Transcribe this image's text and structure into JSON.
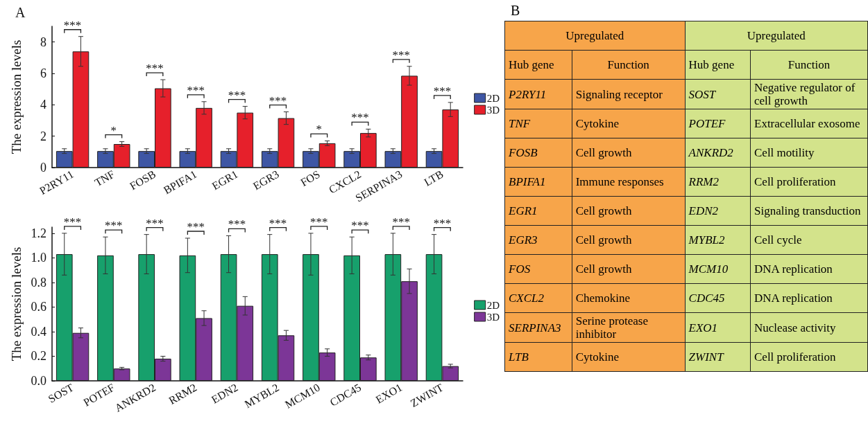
{
  "chart_data": [
    {
      "type": "bar",
      "ylabel": "The expression levels",
      "categories": [
        "P2RY11",
        "TNF",
        "FOSB",
        "BPIFA1",
        "EGR1",
        "EGR3",
        "FOS",
        "CXCL2",
        "SERPINA3",
        "LTB"
      ],
      "series": [
        {
          "name": "2D",
          "color": "#3e56a4",
          "values": [
            1.05,
            1.05,
            1.05,
            1.05,
            1.05,
            1.05,
            1.05,
            1.05,
            1.05,
            1.05
          ],
          "errors": [
            0.15,
            0.15,
            0.15,
            0.15,
            0.15,
            0.15,
            0.15,
            0.15,
            0.15,
            0.15
          ]
        },
        {
          "name": "3D",
          "color": "#e6202b",
          "values": [
            7.4,
            1.5,
            5.05,
            3.8,
            3.5,
            3.15,
            1.55,
            2.2,
            5.85,
            3.7
          ],
          "errors": [
            0.95,
            0.15,
            0.55,
            0.4,
            0.4,
            0.4,
            0.15,
            0.25,
            0.6,
            0.45
          ]
        }
      ],
      "ylim": [
        0,
        9
      ],
      "yticks": [
        0,
        2,
        4,
        6,
        8
      ],
      "grid": false,
      "legend": "right",
      "annotations": [
        "A",
        "***",
        "*",
        "***",
        "***",
        "***",
        "***",
        "*",
        "***",
        "***",
        "***"
      ]
    },
    {
      "type": "bar",
      "ylabel": "The expression levels",
      "categories": [
        "SOST",
        "POTEF",
        "ANKRD2",
        "RRM2",
        "EDN2",
        "MYBL2",
        "MCM10",
        "CDC45",
        "EXO1",
        "ZWINT"
      ],
      "series": [
        {
          "name": "2D",
          "color": "#17a06c",
          "values": [
            1.03,
            1.02,
            1.03,
            1.02,
            1.03,
            1.03,
            1.03,
            1.02,
            1.03,
            1.03
          ],
          "errors": [
            0.17,
            0.15,
            0.16,
            0.14,
            0.15,
            0.16,
            0.17,
            0.15,
            0.17,
            0.16
          ]
        },
        {
          "name": "3D",
          "color": "#7c3697",
          "values": [
            0.39,
            0.1,
            0.18,
            0.51,
            0.61,
            0.37,
            0.23,
            0.19,
            0.81,
            0.12
          ],
          "errors": [
            0.04,
            0.01,
            0.02,
            0.06,
            0.075,
            0.04,
            0.03,
            0.02,
            0.1,
            0.015
          ]
        }
      ],
      "ylim": [
        0,
        1.25
      ],
      "yticks": [
        {
          "value": 0,
          "label": "0.0"
        },
        0.2,
        0.4,
        0.6,
        0.8,
        {
          "value": 1,
          "label": "1.0"
        },
        1.2
      ],
      "grid": false,
      "legend": "right",
      "annotations": [
        "***",
        "***",
        "***",
        "***",
        "***",
        "***",
        "***",
        "***",
        "***",
        "***"
      ]
    },
    {
      "type": "other",
      "colors": [
        "#f7a54a",
        "#d3e38b"
      ],
      "annotations": [
        "B",
        "Upregulated",
        "Upregulated",
        "Hub gene",
        "Function",
        "Hub gene",
        "Function",
        "P2RY11",
        "Signaling receptor",
        "SOST",
        "Negative regulator of cell growth",
        "TNF",
        "Cytokine",
        "POTEF",
        "Extracellular exosome",
        "FOSB",
        "Cell growth",
        "ANKRD2",
        "Cell motility",
        "BPIFA1",
        "Immune responses",
        "RRM2",
        "Cell proliferation",
        "EGR1",
        "Cell growth",
        "EDN2",
        "Signaling transduction",
        "EGR3",
        "Cell growth",
        "MYBL2",
        "Cell cycle",
        "FOS",
        "Cell growth",
        "MCM10",
        "DNA replication",
        "CXCL2",
        "Chemokine",
        "CDC45",
        "DNA replication",
        "SERPINA3",
        "Serine protease inhibitor",
        "EXO1",
        "Nuclease activity",
        "LTB",
        "Cytokine",
        "ZWINT",
        "Cell proliferation"
      ]
    }
  ]
}
